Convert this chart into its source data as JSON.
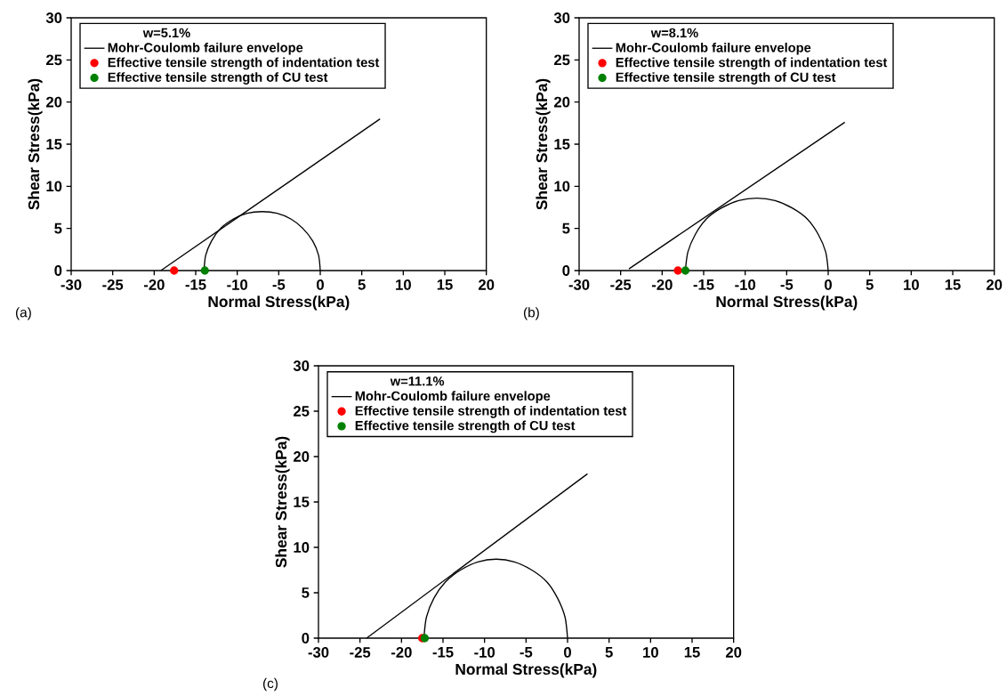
{
  "chart_data": [
    {
      "type": "line",
      "xlabel": "Normal Stress(kPa)",
      "ylabel": "Shear Stress(kPa)",
      "legend_title": "w=5.1%",
      "annotations": [
        "(a)"
      ],
      "xlim": [
        -30,
        20
      ],
      "ylim": [
        0,
        30
      ],
      "xticks": [
        -30,
        -25,
        -20,
        -15,
        -10,
        -5,
        0,
        5,
        10,
        15,
        20
      ],
      "yticks": [
        0,
        5,
        10,
        15,
        20,
        25,
        30
      ],
      "legend": "top left",
      "series": [
        {
          "name": "Mohr-Coulomb failure envelope",
          "color": "#000000",
          "marker": "none",
          "x": [
            -19.2,
            7.2
          ],
          "values": [
            0,
            18
          ]
        },
        {
          "color": "#000000",
          "marker": "none",
          "x": [
            0,
            -0.2,
            -0.9,
            -2.1,
            -3.5,
            -5.2,
            -7,
            -8.8,
            -10.5,
            -12,
            -13.1,
            -13.8,
            -14
          ],
          "values": [
            0,
            1.8,
            3.5,
            5,
            6.1,
            6.8,
            7,
            6.8,
            6.1,
            5,
            3.5,
            1.8,
            0
          ]
        },
        {
          "name": "Effective tensile strength of indentation test",
          "type": "scatter",
          "color": "#ff0000",
          "marker": "circle",
          "x": [
            -17.6
          ],
          "values": [
            0
          ]
        },
        {
          "name": "Effective tensile strength of CU test",
          "type": "scatter",
          "color": "#008000",
          "marker": "circle",
          "x": [
            -13.9
          ],
          "values": [
            0
          ]
        }
      ]
    },
    {
      "type": "line",
      "xlabel": "Normal Stress(kPa)",
      "ylabel": "Shear Stress(kPa)",
      "legend_title": "w=8.1%",
      "annotations": [
        "(b)"
      ],
      "xlim": [
        -30,
        20
      ],
      "ylim": [
        0,
        30
      ],
      "xticks": [
        -30,
        -25,
        -20,
        -15,
        -10,
        -5,
        0,
        5,
        10,
        15,
        20
      ],
      "yticks": [
        0,
        5,
        10,
        15,
        20,
        25,
        30
      ],
      "legend": "top left",
      "series": [
        {
          "name": "Mohr-Coulomb failure envelope",
          "color": "#000000",
          "marker": "none",
          "x": [
            -24,
            2
          ],
          "values": [
            0.2,
            17.6
          ]
        },
        {
          "color": "#000000",
          "marker": "none",
          "x": [
            0,
            -0.3,
            -1.2,
            -2.5,
            -4.3,
            -6.4,
            -8.6,
            -10.8,
            -12.9,
            -14.7,
            -16,
            -16.9,
            -17.2
          ],
          "values": [
            0,
            2.2,
            4.3,
            6.1,
            7.4,
            8.3,
            8.6,
            8.3,
            7.4,
            6.1,
            4.3,
            2.2,
            0
          ]
        },
        {
          "name": "Effective tensile strength of indentation test",
          "type": "scatter",
          "color": "#ff0000",
          "marker": "circle",
          "x": [
            -18.1
          ],
          "values": [
            0
          ]
        },
        {
          "name": "Effective tensile strength of CU test",
          "type": "scatter",
          "color": "#008000",
          "marker": "circle",
          "x": [
            -17.2
          ],
          "values": [
            0
          ]
        }
      ]
    },
    {
      "type": "line",
      "xlabel": "Normal Stress(kPa)",
      "ylabel": "Shear Stress(kPa)",
      "legend_title": "w=11.1%",
      "annotations": [
        "(c)"
      ],
      "xlim": [
        -30,
        20
      ],
      "ylim": [
        0,
        30
      ],
      "xticks": [
        -30,
        -25,
        -20,
        -15,
        -10,
        -5,
        0,
        5,
        10,
        15,
        20
      ],
      "yticks": [
        0,
        5,
        10,
        15,
        20,
        25,
        30
      ],
      "legend": "top left",
      "series": [
        {
          "name": "Mohr-Coulomb failure envelope",
          "color": "#000000",
          "marker": "none",
          "x": [
            -24.2,
            2.4
          ],
          "values": [
            0,
            18.1
          ]
        },
        {
          "color": "#000000",
          "marker": "none",
          "x": [
            0,
            -0.3,
            -1.2,
            -2.5,
            -4.3,
            -6.4,
            -8.6,
            -10.8,
            -12.9,
            -14.7,
            -16.1,
            -17,
            -17.3
          ],
          "values": [
            0,
            2.3,
            4.4,
            6.2,
            7.5,
            8.4,
            8.7,
            8.4,
            7.5,
            6.2,
            4.4,
            2.3,
            0
          ]
        },
        {
          "name": "Effective tensile strength of indentation test",
          "type": "scatter",
          "color": "#ff0000",
          "marker": "circle",
          "x": [
            -17.5
          ],
          "values": [
            0
          ]
        },
        {
          "name": "Effective tensile strength of CU test",
          "type": "scatter",
          "color": "#008000",
          "marker": "circle",
          "x": [
            -17.2
          ],
          "values": [
            0
          ]
        }
      ]
    }
  ]
}
